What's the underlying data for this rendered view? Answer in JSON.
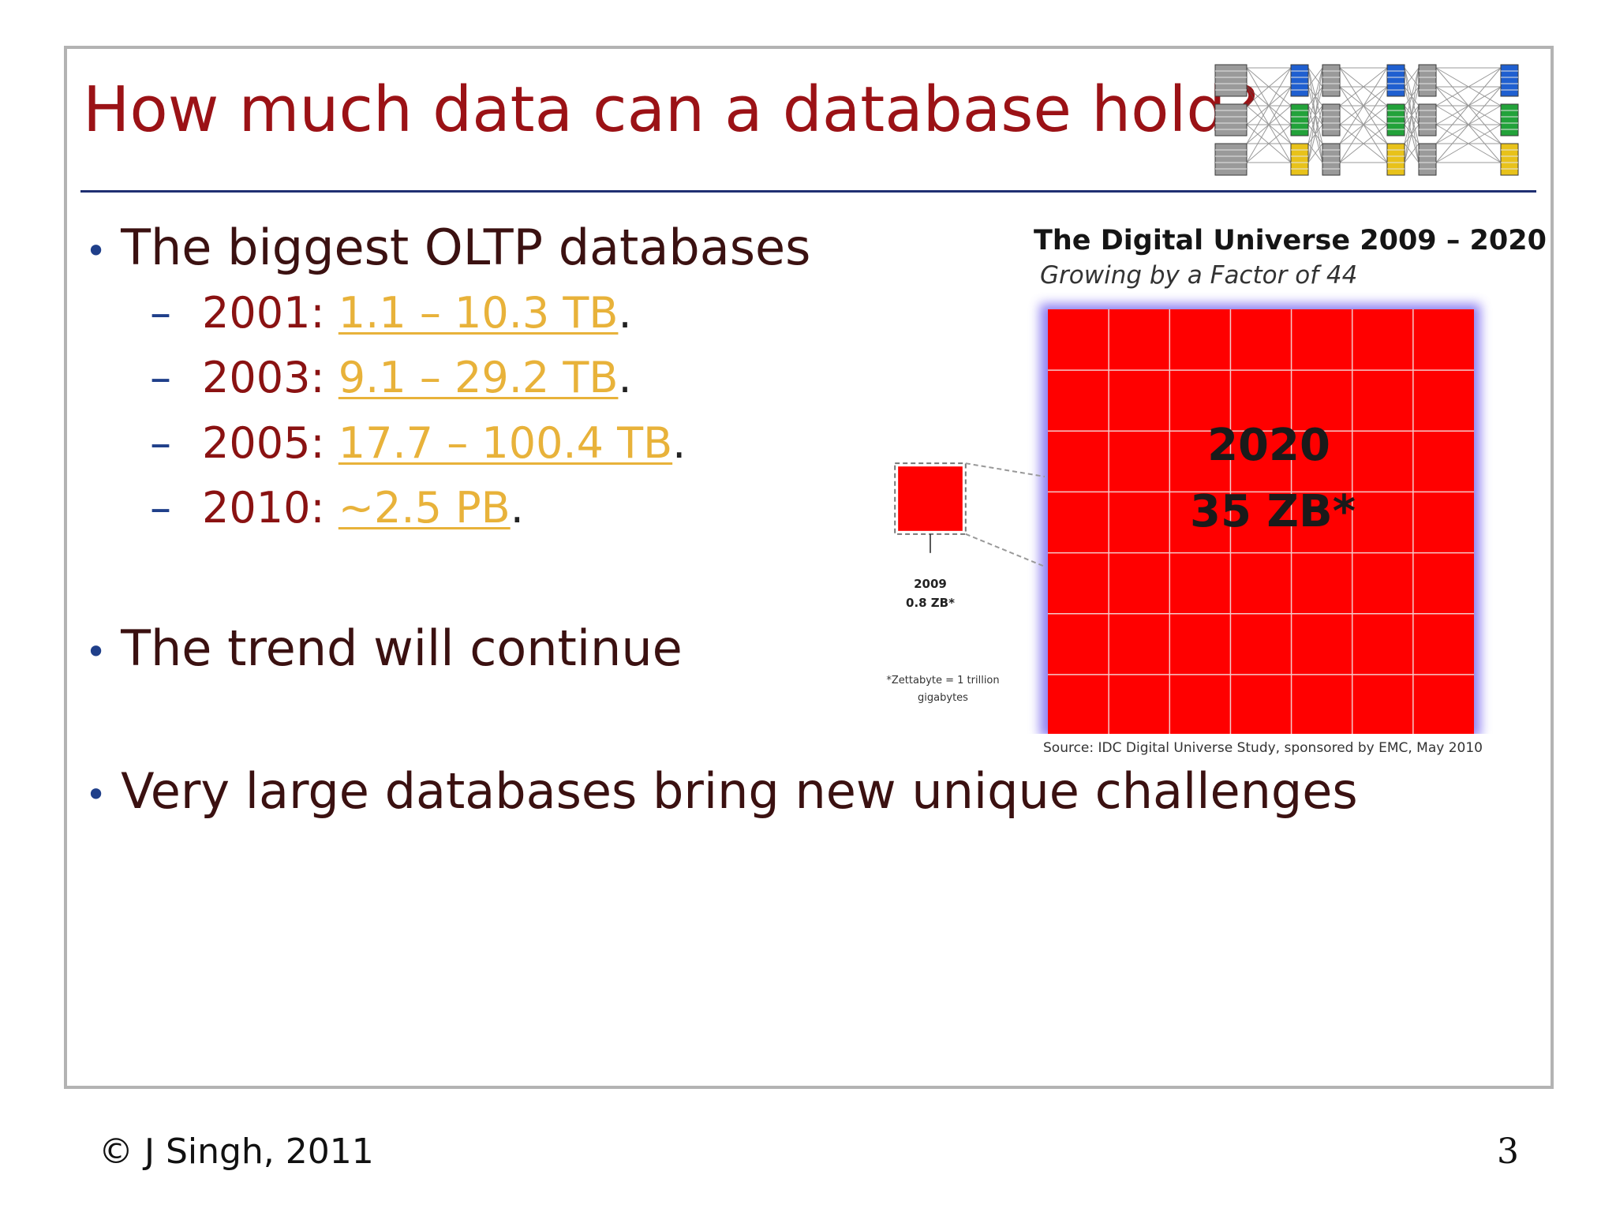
{
  "slide": {
    "title": "How much data can a database hold?",
    "bullets": [
      "The biggest OLTP databases",
      "The trend will continue",
      "Very large databases bring new unique challenges"
    ],
    "sub_items": [
      {
        "year_label": "2001: ",
        "link_text": "1.1 – 10.3 TB",
        "suffix": "."
      },
      {
        "year_label": "2003: ",
        "link_text": "9.1 – 29.2 TB",
        "suffix": "."
      },
      {
        "year_label": "2005: ",
        "link_text": "17.7 – 100.4 TB",
        "suffix": "."
      },
      {
        "year_label": "2010: ",
        "link_text": "~2.5 PB",
        "suffix": "."
      }
    ],
    "dash": "–",
    "bullet_symbol": "•"
  },
  "footer": {
    "copyright": "© J Singh, 2011",
    "page_number": "3"
  },
  "colors": {
    "title": "#9b1216",
    "link": "#e8b23a",
    "rule": "#1f2f72",
    "chart_red": "#ff0000",
    "chart_glow": "#7b6cf0"
  },
  "chart_data": {
    "type": "area-comparison",
    "title": "The Digital Universe 2009 – 2020",
    "subtitle": "Growing by a Factor of 44",
    "series": [
      {
        "year": "2009",
        "value_label": "0.8 ZB*",
        "value_zb": 0.8
      },
      {
        "year": "2020",
        "value_label": "35 ZB*",
        "value_zb": 35
      }
    ],
    "footnote": "*Zettabyte = 1 trillion gigabytes",
    "source": "Source: IDC Digital Universe Study, sponsored by EMC, May 2010"
  }
}
